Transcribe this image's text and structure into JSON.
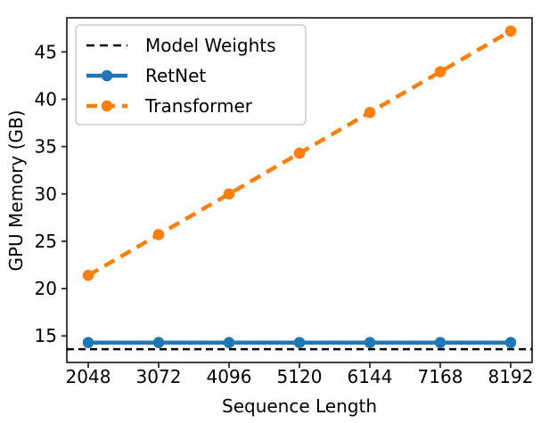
{
  "chart_data": {
    "type": "line",
    "title": "",
    "xlabel": "Sequence Length",
    "ylabel": "GPU Memory (GB)",
    "x": [
      2048,
      3072,
      4096,
      5120,
      6144,
      7168,
      8192
    ],
    "xticks": [
      "2048",
      "3072",
      "4096",
      "5120",
      "6144",
      "7168",
      "8192"
    ],
    "yticks": [
      "15",
      "20",
      "25",
      "30",
      "35",
      "40",
      "45"
    ],
    "xlim": [
      1737,
      8503
    ],
    "ylim": [
      12.2,
      48.6
    ],
    "grid": false,
    "legend_position": "upper-left",
    "series": [
      {
        "name": "Model Weights",
        "color": "#000000",
        "style": "dashed",
        "marker": false,
        "linewidth": 2.5,
        "span": "full",
        "constant": 13.6,
        "values": [
          13.6,
          13.6,
          13.6,
          13.6,
          13.6,
          13.6,
          13.6
        ]
      },
      {
        "name": "RetNet",
        "color": "#1f77b4",
        "style": "solid",
        "marker": true,
        "linewidth": 4.5,
        "span": "data",
        "values": [
          14.3,
          14.3,
          14.3,
          14.3,
          14.3,
          14.3,
          14.3
        ]
      },
      {
        "name": "Transformer",
        "color": "#ff7f0e",
        "style": "dashed",
        "marker": true,
        "linewidth": 4.5,
        "span": "data",
        "values": [
          21.4,
          25.7,
          30.0,
          34.3,
          38.6,
          42.9,
          47.2
        ]
      }
    ]
  }
}
